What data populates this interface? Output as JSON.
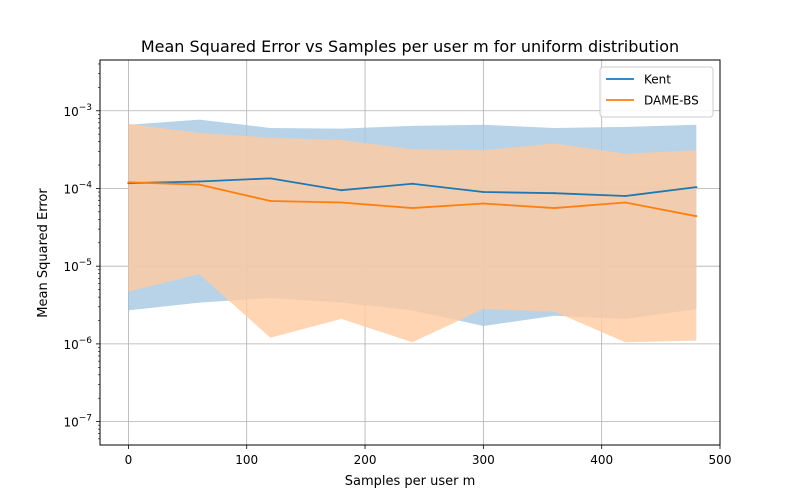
{
  "chart_data": {
    "type": "line",
    "title": "Mean Squared Error vs Samples per user m for uniform distribution",
    "xlabel": "Samples per user m",
    "ylabel": "Mean Squared Error",
    "xlim": [
      -24,
      500
    ],
    "ylim": [
      5e-08,
      0.0045
    ],
    "yscale": "log",
    "grid": true,
    "legend_position": "top-right",
    "x_ticks": [
      0,
      100,
      200,
      300,
      400,
      500
    ],
    "x_tick_labels": [
      "0",
      "100",
      "200",
      "300",
      "400",
      "500"
    ],
    "y_ticks": [
      1e-07,
      1e-06,
      1e-05,
      0.0001,
      0.001
    ],
    "y_tick_labels": [
      {
        "base": "10",
        "exp": "−7"
      },
      {
        "base": "10",
        "exp": "−6"
      },
      {
        "base": "10",
        "exp": "−5"
      },
      {
        "base": "10",
        "exp": "−4"
      },
      {
        "base": "10",
        "exp": "−3"
      }
    ],
    "x": [
      0,
      60,
      120,
      180,
      240,
      300,
      360,
      420,
      480
    ],
    "series": [
      {
        "name": "Kent",
        "color": "#1f77b4",
        "band_color": "#a6c8e2",
        "values": [
          0.000117,
          0.000123,
          0.000135,
          9.5e-05,
          0.000115,
          9e-05,
          8.7e-05,
          8e-05,
          0.000104
        ],
        "upper": [
          0.00066,
          0.00077,
          0.0006,
          0.00059,
          0.00064,
          0.00066,
          0.0006,
          0.00062,
          0.00066
        ],
        "lower": [
          2.7e-06,
          3.4e-06,
          3.9e-06,
          3.4e-06,
          2.7e-06,
          1.7e-06,
          2.3e-06,
          2.1e-06,
          2.8e-06
        ]
      },
      {
        "name": "DAME-BS",
        "color": "#ff7f0e",
        "band_color": "#ffcba0",
        "values": [
          0.00012,
          0.000112,
          6.9e-05,
          6.6e-05,
          5.6e-05,
          6.4e-05,
          5.6e-05,
          6.6e-05,
          4.4e-05
        ],
        "upper": [
          0.00068,
          0.00052,
          0.00045,
          0.00042,
          0.00032,
          0.00031,
          0.00038,
          0.00028,
          0.00031
        ],
        "lower": [
          4.7e-06,
          7.9e-06,
          1.2e-06,
          2.1e-06,
          1.05e-06,
          2.8e-06,
          2.6e-06,
          1.05e-06,
          1.1e-06
        ]
      }
    ]
  }
}
